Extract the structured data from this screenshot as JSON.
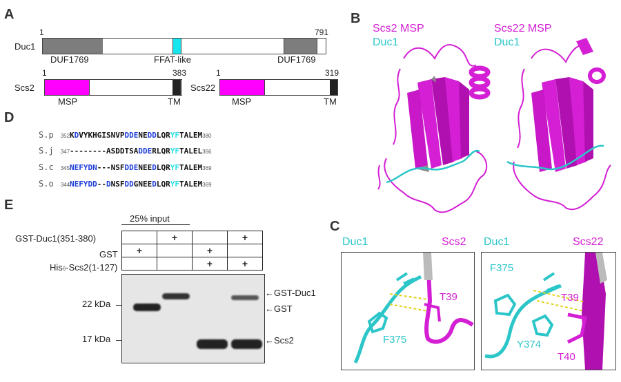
{
  "panels": {
    "A": "A",
    "B": "B",
    "C": "C",
    "D": "D",
    "E": "E"
  },
  "panel_a": {
    "duc1": {
      "name": "Duc1",
      "start": "1",
      "end": "791",
      "domain_left": "DUF1769",
      "domain_mid": "FFAT-like",
      "domain_right": "DUF1769"
    },
    "scs2": {
      "name": "Scs2",
      "start": "1",
      "end": "383",
      "domain": "MSP",
      "tm": "TM"
    },
    "scs22": {
      "name": "Scs22",
      "start": "1",
      "end": "319",
      "domain": "MSP",
      "tm": "TM"
    },
    "colors": {
      "duf": "#7d7d7d",
      "ffat": "#17e6ef",
      "msp": "#ff00ff",
      "tm": "#222222"
    }
  },
  "panel_b": {
    "left_title": "Scs2 MSP",
    "left_sub": "Duc1",
    "right_title": "Scs22 MSP",
    "right_sub": "Duc1",
    "colors": {
      "magenta": "#d41fd4",
      "cyan": "#2cc6c9"
    }
  },
  "panel_c": {
    "left": {
      "a": "Duc1",
      "b": "Scs2",
      "res1": "T39",
      "res2": "F375"
    },
    "right": {
      "a": "Duc1",
      "b": "Scs22",
      "res1": "F375",
      "res2": "T39",
      "res3": "Y374",
      "res4": "T40"
    }
  },
  "panel_d": {
    "rows": [
      {
        "org": "S.p",
        "start": "352",
        "end": "380",
        "segments": [
          [
            "K",
            "k"
          ],
          [
            "D",
            "b"
          ],
          [
            "VYKHGISNVP",
            "k"
          ],
          [
            "DDE",
            "b"
          ],
          [
            "NE",
            "k"
          ],
          [
            "DD",
            "b"
          ],
          [
            "LQR",
            "k"
          ],
          [
            "YF",
            "c"
          ],
          [
            "TALEM",
            "k"
          ]
        ]
      },
      {
        "org": "S.j",
        "start": "347",
        "end": "366",
        "segments": [
          [
            "--------ASDDTSA",
            "k"
          ],
          [
            "DDE",
            "b"
          ],
          [
            "RLQR",
            "k"
          ],
          [
            "YF",
            "c"
          ],
          [
            "TALEL",
            "k"
          ]
        ]
      },
      {
        "org": "S.c",
        "start": "345",
        "end": "369",
        "segments": [
          [
            "NEFY",
            "b"
          ],
          [
            "DN",
            "b"
          ],
          [
            "---NSF",
            "k"
          ],
          [
            "DDE",
            "b"
          ],
          [
            "NEE",
            "k"
          ],
          [
            "D",
            "b"
          ],
          [
            "LQR",
            "k"
          ],
          [
            "YF",
            "c"
          ],
          [
            "TALEM",
            "k"
          ]
        ]
      },
      {
        "org": "S.o",
        "start": "344",
        "end": "369",
        "segments": [
          [
            "NEFY",
            "b"
          ],
          [
            "DD",
            "b"
          ],
          [
            "--",
            "k"
          ],
          [
            "D",
            "b"
          ],
          [
            "NSF",
            "k"
          ],
          [
            "DD",
            "b"
          ],
          [
            "GNEE",
            "k"
          ],
          [
            "D",
            "b"
          ],
          [
            "LQR",
            "k"
          ],
          [
            "YF",
            "c"
          ],
          [
            "TALEM",
            "k"
          ]
        ]
      }
    ]
  },
  "panel_e": {
    "input_label": "25% input",
    "row_labels": [
      "GST-Duc1(351-380)",
      "GST",
      "His6-Scs2(1-127)"
    ],
    "row1": [
      "",
      "+",
      "",
      "+"
    ],
    "row2": [
      "+",
      "",
      "+",
      ""
    ],
    "row3": [
      "",
      "",
      "+",
      "+"
    ],
    "mw_labels": [
      "22 kDa",
      "17 kDa"
    ],
    "band_labels": [
      "←GST-Duc1",
      "←GST",
      "←Scs2"
    ]
  }
}
